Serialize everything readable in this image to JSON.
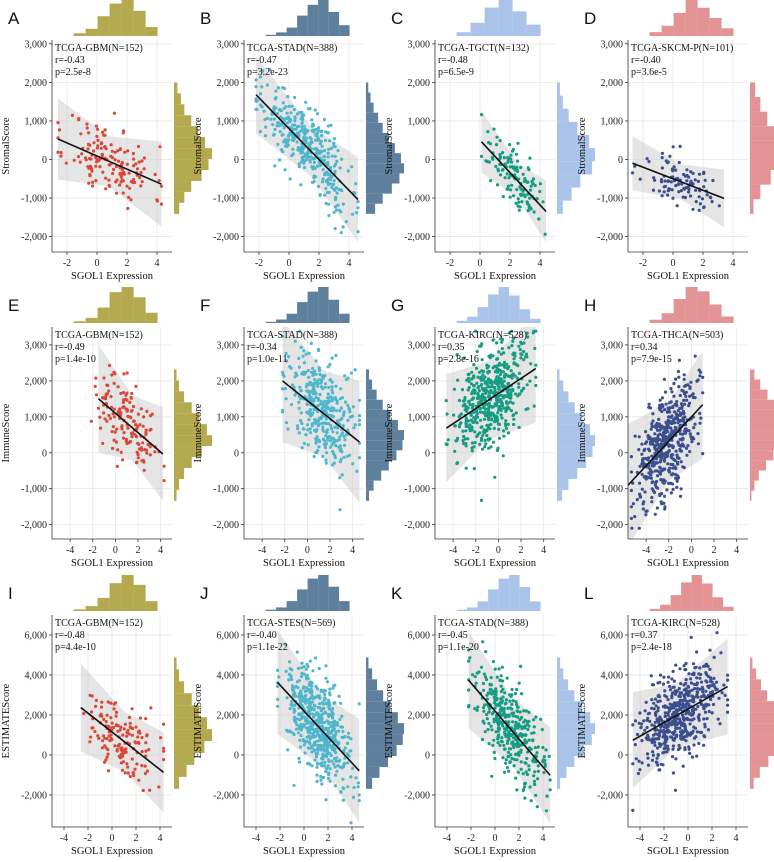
{
  "colors": {
    "olive": "#b5a94f",
    "steel": "#5e809c",
    "sky": "#a9c4e8",
    "rose": "#e39393",
    "red_point": "#d9493a",
    "cyan_point": "#4fb6cc",
    "teal_point": "#169c82",
    "navy_point": "#3c4f8c",
    "band": "#cfcfcf",
    "line": "#111111"
  },
  "chart_data": [
    {
      "label": "A",
      "type": "scatter",
      "title": "TCGA-GBM(N=152)",
      "r": "r=-0.43",
      "p": "p=2.5e-8",
      "xlabel": "SGOL1 Expression",
      "ylabel": "StromalScore",
      "xlim": [
        -3,
        5
      ],
      "ylim": [
        -2400,
        3100
      ],
      "xticks": [
        -2,
        0,
        2,
        4
      ],
      "yticks": [
        -2000,
        -1000,
        0,
        1000,
        2000,
        3000
      ],
      "ytick_labels": [
        "-2,000",
        "-1,000",
        "0",
        "1,000",
        "2,000",
        "3,000"
      ],
      "n": 152,
      "x_range": [
        -2.6,
        4.3
      ],
      "slope": -170,
      "intercept": 90,
      "noise": 480,
      "seed": 11,
      "line_x": [
        -2.6,
        4.3
      ],
      "band_width": [
        [
          -2.6,
          1050
        ],
        [
          0.8,
          650
        ],
        [
          4.3,
          1100
        ]
      ],
      "point_color": "red_point",
      "hist_color": "olive",
      "top_hist": [
        3,
        8,
        22,
        36,
        40,
        28,
        10
      ],
      "right_hist": [
        2,
        4,
        6,
        10,
        14,
        18,
        22,
        20,
        16,
        10,
        6,
        3
      ]
    },
    {
      "label": "B",
      "type": "scatter",
      "title": "TCGA-STAD(N=388)",
      "r": "r=-0.47",
      "p": "p=3.2e-23",
      "xlabel": "SGOL1 Expression",
      "ylabel": "StromalScore",
      "xlim": [
        -3,
        5
      ],
      "ylim": [
        -2400,
        3100
      ],
      "xticks": [
        -2,
        0,
        2,
        4
      ],
      "yticks": [
        -2000,
        -1000,
        0,
        1000,
        2000,
        3000
      ],
      "ytick_labels": [
        "-2,000",
        "-1,000",
        "0",
        "1,000",
        "2,000",
        "3,000"
      ],
      "n": 388,
      "x_range": [
        -2.2,
        4.6
      ],
      "slope": -400,
      "intercept": 800,
      "noise": 480,
      "seed": 22,
      "line_x": [
        -2.2,
        4.6
      ],
      "band_width": [
        [
          -2.2,
          1000
        ],
        [
          1.5,
          650
        ],
        [
          4.6,
          1100
        ]
      ],
      "point_color": "cyan_point",
      "hist_color": "steel",
      "top_hist": [
        2,
        6,
        14,
        34,
        52,
        60,
        40,
        18
      ],
      "right_hist": [
        3,
        6,
        10,
        16,
        22,
        30,
        38,
        46,
        50,
        44,
        34,
        22,
        12
      ]
    },
    {
      "label": "C",
      "type": "scatter",
      "title": "TCGA-TGCT(N=132)",
      "r": "r=-0.48",
      "p": "p=6.5e-9",
      "xlabel": "SGOL1 Expression",
      "ylabel": "StromalScore",
      "xlim": [
        -3,
        5
      ],
      "ylim": [
        -2400,
        3100
      ],
      "xticks": [
        -2,
        0,
        2,
        4
      ],
      "yticks": [
        -2000,
        -1000,
        0,
        1000,
        2000,
        3000
      ],
      "ytick_labels": [
        "-2,000",
        "-1,000",
        "0",
        "1,000",
        "2,000",
        "3,000"
      ],
      "n": 132,
      "x_range": [
        0.1,
        4.4
      ],
      "slope": -420,
      "intercept": 500,
      "noise": 360,
      "seed": 33,
      "line_x": [
        0.1,
        4.4
      ],
      "band_width": [
        [
          0.1,
          800
        ],
        [
          2.5,
          450
        ],
        [
          4.4,
          800
        ]
      ],
      "point_color": "teal_point",
      "hist_color": "sky",
      "top_hist": [
        4,
        14,
        30,
        38,
        26,
        12
      ],
      "right_hist": [
        2,
        4,
        8,
        14,
        22,
        26,
        24,
        16,
        10,
        4
      ]
    },
    {
      "label": "D",
      "type": "scatter",
      "title": "TCGA-SKCM-P(N=101)",
      "r": "r=-0.40",
      "p": "p=3.6e-5",
      "xlabel": "SGOL1 Expression",
      "ylabel": "StromalScore",
      "xlim": [
        -3,
        5
      ],
      "ylim": [
        -2400,
        3100
      ],
      "xticks": [
        -2,
        0,
        2,
        4
      ],
      "yticks": [
        -2000,
        -1000,
        0,
        1000,
        2000,
        3000
      ],
      "ytick_labels": [
        "-2,000",
        "-1,000",
        "0",
        "1,000",
        "2,000",
        "3,000"
      ],
      "n": 101,
      "x_range": [
        -2.7,
        3.4
      ],
      "slope": -150,
      "intercept": -500,
      "noise": 380,
      "seed": 44,
      "line_x": [
        -2.7,
        3.4
      ],
      "band_width": [
        [
          -2.7,
          700
        ],
        [
          0.5,
          450
        ],
        [
          3.4,
          750
        ]
      ],
      "point_color": "navy_point",
      "hist_color": "rose",
      "top_hist": [
        3,
        8,
        18,
        28,
        22,
        14,
        6
      ],
      "right_hist": [
        3,
        6,
        10,
        16,
        22,
        18,
        12,
        6,
        2
      ]
    },
    {
      "label": "E",
      "type": "scatter",
      "title": "TCGA-GBM(N=152)",
      "r": "r=-0.49",
      "p": "p=1.4e-10",
      "xlabel": "SGOL1 Expression",
      "ylabel": "ImmuneScore",
      "xlim": [
        -5.6,
        5
      ],
      "ylim": [
        -2400,
        3500
      ],
      "xticks": [
        -4,
        -2,
        0,
        2,
        4
      ],
      "yticks": [
        -2000,
        -1000,
        0,
        1000,
        2000,
        3000
      ],
      "ytick_labels": [
        "-2,000",
        "-1,000",
        "0",
        "1,000",
        "2,000",
        "3,000"
      ],
      "n": 152,
      "x_range": [
        -2.6,
        4.3
      ],
      "slope": -270,
      "intercept": 1100,
      "noise": 540,
      "seed": 55,
      "line_x": [
        -1.5,
        4.2
      ],
      "band_width": [
        [
          -1.5,
          1500
        ],
        [
          1.5,
          900
        ],
        [
          4.2,
          1300
        ]
      ],
      "point_color": "red_point",
      "hist_color": "olive",
      "top_hist": [
        2,
        6,
        18,
        36,
        42,
        30,
        12
      ],
      "right_hist": [
        2,
        4,
        8,
        14,
        20,
        26,
        30,
        22,
        14,
        8,
        4,
        2
      ]
    },
    {
      "label": "F",
      "type": "scatter",
      "title": "TCGA-STAD(N=388)",
      "r": "r=-0.34",
      "p": "p=1.0e-11",
      "xlabel": "SGOL1 Expression",
      "ylabel": "ImmuneScore",
      "xlim": [
        -5.6,
        5
      ],
      "ylim": [
        -2400,
        3500
      ],
      "xticks": [
        -4,
        -2,
        0,
        2,
        4
      ],
      "yticks": [
        -2000,
        -1000,
        0,
        1000,
        2000,
        3000
      ],
      "ytick_labels": [
        "-2,000",
        "-1,000",
        "0",
        "1,000",
        "2,000",
        "3,000"
      ],
      "n": 388,
      "x_range": [
        -2.2,
        4.6
      ],
      "slope": -250,
      "intercept": 1450,
      "noise": 720,
      "seed": 66,
      "line_x": [
        -2.2,
        4.6
      ],
      "band_width": [
        [
          -2.2,
          1700
        ],
        [
          1.5,
          1200
        ],
        [
          4.6,
          1700
        ]
      ],
      "point_color": "cyan_point",
      "hist_color": "steel",
      "top_hist": [
        2,
        6,
        16,
        36,
        54,
        62,
        40,
        16
      ],
      "right_hist": [
        4,
        8,
        14,
        22,
        32,
        42,
        50,
        48,
        40,
        30,
        20,
        10,
        4
      ]
    },
    {
      "label": "G",
      "type": "scatter",
      "title": "TCGA-KIRC(N=528)",
      "r": "r=0.35",
      "p": "p=2.8e-16",
      "xlabel": "SGOL1 Expression",
      "ylabel": "ImmuneScore",
      "xlim": [
        -5.6,
        5
      ],
      "ylim": [
        -2400,
        3500
      ],
      "xticks": [
        -4,
        -2,
        0,
        2,
        4
      ],
      "yticks": [
        -2000,
        -1000,
        0,
        1000,
        2000,
        3000
      ],
      "ytick_labels": [
        "-2,000",
        "-1,000",
        "0",
        "1,000",
        "2,000",
        "3,000"
      ],
      "n": 528,
      "x_range": [
        -4.6,
        3.3
      ],
      "slope": 210,
      "intercept": 1650,
      "noise": 700,
      "seed": 77,
      "line_x": [
        -4.6,
        3.3
      ],
      "band_width": [
        [
          -4.6,
          1500
        ],
        [
          -1,
          1100
        ],
        [
          3.3,
          1500
        ]
      ],
      "point_color": "teal_point",
      "hist_color": "sky",
      "top_hist": [
        4,
        12,
        30,
        54,
        68,
        52,
        26,
        8
      ],
      "right_hist": [
        4,
        10,
        18,
        28,
        40,
        52,
        60,
        56,
        46,
        32,
        18,
        8
      ]
    },
    {
      "label": "H",
      "type": "scatter",
      "title": "TCGA-THCA(N=503)",
      "r": "r=0.34",
      "p": "p=7.9e-15",
      "xlabel": "SGOL1 Expression",
      "ylabel": "ImmuneScore",
      "xlim": [
        -5.6,
        5
      ],
      "ylim": [
        -2400,
        3500
      ],
      "xticks": [
        -4,
        -2,
        0,
        2,
        4
      ],
      "yticks": [
        -2000,
        -1000,
        0,
        1000,
        2000,
        3000
      ],
      "ytick_labels": [
        "-2,000",
        "-1,000",
        "0",
        "1,000",
        "2,000",
        "3,000"
      ],
      "n": 503,
      "x_range": [
        -5.3,
        1.0
      ],
      "slope": 340,
      "intercept": 1000,
      "noise": 720,
      "seed": 88,
      "line_x": [
        -5.6,
        1.0
      ],
      "band_width": [
        [
          -5.6,
          1700
        ],
        [
          -2,
          1100
        ],
        [
          1.0,
          1500
        ]
      ],
      "point_color": "navy_point",
      "hist_color": "rose",
      "top_hist": [
        6,
        18,
        44,
        66,
        58,
        34,
        12
      ],
      "right_hist": [
        6,
        14,
        24,
        34,
        44,
        52,
        50,
        42,
        32,
        22,
        12,
        6,
        2
      ]
    },
    {
      "label": "I",
      "type": "scatter",
      "title": "TCGA-GBM(N=152)",
      "r": "r=-0.48",
      "p": "p=4.4e-10",
      "xlabel": "SGOL1 Expression",
      "ylabel": "ESTIMATEScore",
      "xlim": [
        -5,
        5
      ],
      "ylim": [
        -3600,
        7000
      ],
      "xticks": [
        -4,
        -2,
        0,
        2,
        4
      ],
      "yticks": [
        -2000,
        0,
        2000,
        4000,
        6000
      ],
      "ytick_labels": [
        "-2,000",
        "0",
        "2,000",
        "4,000",
        "6,000"
      ],
      "n": 152,
      "x_range": [
        -2.6,
        4.3
      ],
      "slope": -470,
      "intercept": 1150,
      "noise": 950,
      "seed": 99,
      "line_x": [
        -2.6,
        4.3
      ],
      "band_width": [
        [
          -2.6,
          2200
        ],
        [
          1,
          1500
        ],
        [
          4.3,
          2000
        ]
      ],
      "point_color": "red_point",
      "hist_color": "olive",
      "top_hist": [
        2,
        6,
        16,
        34,
        44,
        32,
        12
      ],
      "right_hist": [
        2,
        4,
        8,
        14,
        20,
        26,
        30,
        24,
        16,
        10,
        4
      ]
    },
    {
      "label": "J",
      "type": "scatter",
      "title": "TCGA-STES(N=569)",
      "r": "r=-0.40",
      "p": "p=1.1e-22",
      "xlabel": "SGOL1 Expression",
      "ylabel": "ESTIMATEScore",
      "xlim": [
        -5,
        5
      ],
      "ylim": [
        -3600,
        7000
      ],
      "xticks": [
        -4,
        -2,
        0,
        2,
        4
      ],
      "yticks": [
        -2000,
        0,
        2000,
        4000,
        6000
      ],
      "ytick_labels": [
        "-2,000",
        "0",
        "2,000",
        "4,000",
        "6,000"
      ],
      "n": 569,
      "x_range": [
        -2.2,
        4.6
      ],
      "slope": -650,
      "intercept": 2200,
      "noise": 1200,
      "seed": 111,
      "line_x": [
        -2.2,
        4.6
      ],
      "band_width": [
        [
          -2.2,
          2600
        ],
        [
          1.5,
          1800
        ],
        [
          4.6,
          2600
        ]
      ],
      "point_color": "cyan_point",
      "hist_color": "steel",
      "top_hist": [
        3,
        8,
        22,
        48,
        72,
        80,
        54,
        22
      ],
      "right_hist": [
        4,
        10,
        18,
        28,
        40,
        52,
        62,
        60,
        50,
        36,
        22,
        10
      ]
    },
    {
      "label": "K",
      "type": "scatter",
      "title": "TCGA-STAD(N=388)",
      "r": "r=-0.45",
      "p": "p=1.1e-20",
      "xlabel": "SGOL1 Expression",
      "ylabel": "ESTIMATEScore",
      "xlim": [
        -5,
        5
      ],
      "ylim": [
        -3600,
        7000
      ],
      "xticks": [
        -4,
        -2,
        0,
        2,
        4
      ],
      "yticks": [
        -2000,
        0,
        2000,
        4000,
        6000
      ],
      "ytick_labels": [
        "-2,000",
        "0",
        "2,000",
        "4,000",
        "6,000"
      ],
      "n": 388,
      "x_range": [
        -2.2,
        4.6
      ],
      "slope": -700,
      "intercept": 2200,
      "noise": 1100,
      "seed": 122,
      "line_x": [
        -2.2,
        4.6
      ],
      "band_width": [
        [
          -2.2,
          2400
        ],
        [
          1.5,
          1700
        ],
        [
          4.6,
          2400
        ]
      ],
      "point_color": "teal_point",
      "hist_color": "sky",
      "top_hist": [
        2,
        6,
        16,
        36,
        54,
        60,
        40,
        16
      ],
      "right_hist": [
        4,
        8,
        14,
        22,
        32,
        42,
        48,
        44,
        34,
        22,
        12,
        4
      ]
    },
    {
      "label": "L",
      "type": "scatter",
      "title": "TCGA-KIRC(N=528)",
      "r": "r=0.37",
      "p": "p=2.4e-18",
      "xlabel": "SGOL1 Expression",
      "ylabel": "ESTIMATEScore",
      "xlim": [
        -5,
        5
      ],
      "ylim": [
        -3600,
        7000
      ],
      "xticks": [
        -4,
        -2,
        0,
        2,
        4
      ],
      "yticks": [
        -2000,
        0,
        2000,
        4000,
        6000
      ],
      "ytick_labels": [
        "-2,000",
        "0",
        "2,000",
        "4,000",
        "6,000"
      ],
      "n": 528,
      "x_range": [
        -4.6,
        3.3
      ],
      "slope": 340,
      "intercept": 2300,
      "noise": 1050,
      "seed": 133,
      "line_x": [
        -4.6,
        3.3
      ],
      "band_width": [
        [
          -4.6,
          2400
        ],
        [
          -1,
          1600
        ],
        [
          3.3,
          2400
        ]
      ],
      "point_color": "navy_point",
      "hist_color": "rose",
      "top_hist": [
        4,
        12,
        30,
        54,
        68,
        52,
        26,
        8
      ],
      "right_hist": [
        4,
        10,
        18,
        28,
        40,
        54,
        62,
        56,
        44,
        30,
        16,
        6
      ]
    }
  ]
}
